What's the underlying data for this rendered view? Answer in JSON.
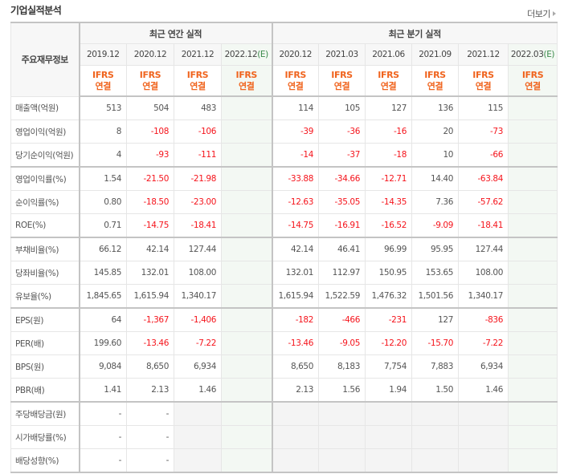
{
  "title": "기업실적분석",
  "more_label": "더보기",
  "row_header": "주요재무정보",
  "groups": {
    "annual": "최근 연간 실적",
    "quarterly": "최근 분기 실적"
  },
  "unit_top": "IFRS",
  "unit_bottom": "연결",
  "estimate_mark": "(E)",
  "periods": [
    {
      "label": "2019.12",
      "est": false
    },
    {
      "label": "2020.12",
      "est": false
    },
    {
      "label": "2021.12",
      "est": false
    },
    {
      "label": "2022.12",
      "est": true
    },
    {
      "label": "2020.12",
      "est": false
    },
    {
      "label": "2021.03",
      "est": false
    },
    {
      "label": "2021.06",
      "est": false
    },
    {
      "label": "2021.09",
      "est": false
    },
    {
      "label": "2021.12",
      "est": false
    },
    {
      "label": "2022.03",
      "est": true
    }
  ],
  "rows": [
    {
      "label": "매출액(억원)",
      "values": [
        "513",
        "504",
        "483",
        null,
        "114",
        "105",
        "127",
        "136",
        "115",
        null
      ]
    },
    {
      "label": "영업이익(억원)",
      "values": [
        "8",
        "-108",
        "-106",
        null,
        "-39",
        "-36",
        "-16",
        "20",
        "-73",
        null
      ]
    },
    {
      "label": "당기순이익(억원)",
      "values": [
        "4",
        "-93",
        "-111",
        null,
        "-14",
        "-37",
        "-18",
        "10",
        "-66",
        null
      ],
      "thick": true
    },
    {
      "label": "영업이익률(%)",
      "values": [
        "1.54",
        "-21.50",
        "-21.98",
        null,
        "-33.88",
        "-34.66",
        "-12.71",
        "14.40",
        "-63.84",
        null
      ]
    },
    {
      "label": "순이익률(%)",
      "values": [
        "0.80",
        "-18.50",
        "-23.00",
        null,
        "-12.63",
        "-35.05",
        "-14.35",
        "7.36",
        "-57.62",
        null
      ]
    },
    {
      "label": "ROE(%)",
      "values": [
        "0.71",
        "-14.75",
        "-18.41",
        null,
        "-14.75",
        "-16.91",
        "-16.52",
        "-9.09",
        "-18.41",
        null
      ],
      "thick": true
    },
    {
      "label": "부채비율(%)",
      "values": [
        "66.12",
        "42.14",
        "127.44",
        null,
        "42.14",
        "46.41",
        "96.99",
        "95.95",
        "127.44",
        null
      ]
    },
    {
      "label": "당좌비율(%)",
      "values": [
        "145.85",
        "132.01",
        "108.00",
        null,
        "132.01",
        "112.97",
        "150.95",
        "153.65",
        "108.00",
        null
      ]
    },
    {
      "label": "유보율(%)",
      "values": [
        "1,845.65",
        "1,615.94",
        "1,340.17",
        null,
        "1,615.94",
        "1,522.59",
        "1,476.32",
        "1,501.56",
        "1,340.17",
        null
      ],
      "thick": true
    },
    {
      "label": "EPS(원)",
      "values": [
        "64",
        "-1,367",
        "-1,406",
        null,
        "-182",
        "-466",
        "-231",
        "127",
        "-836",
        null
      ]
    },
    {
      "label": "PER(배)",
      "values": [
        "199.60",
        "-13.46",
        "-7.22",
        null,
        "-13.46",
        "-9.05",
        "-12.20",
        "-15.70",
        "-7.22",
        null
      ]
    },
    {
      "label": "BPS(원)",
      "values": [
        "9,084",
        "8,650",
        "6,934",
        null,
        "8,650",
        "8,183",
        "7,754",
        "7,883",
        "6,934",
        null
      ]
    },
    {
      "label": "PBR(배)",
      "values": [
        "1.41",
        "2.13",
        "1.46",
        null,
        "2.13",
        "1.56",
        "1.94",
        "1.50",
        "1.46",
        null
      ],
      "thick": true
    },
    {
      "label": "주당배당금(원)",
      "values": [
        "-",
        "-",
        null,
        null,
        null,
        null,
        null,
        null,
        null,
        null
      ],
      "dividend": true
    },
    {
      "label": "시가배당률(%)",
      "values": [
        "-",
        "-",
        null,
        null,
        null,
        null,
        null,
        null,
        null,
        null
      ],
      "dividend": true
    },
    {
      "label": "배당성향(%)",
      "values": [
        "-",
        "-",
        null,
        null,
        null,
        null,
        null,
        null,
        null,
        null
      ],
      "dividend": true
    }
  ],
  "colors": {
    "negative": "#f5141c",
    "unit": "#f0641e",
    "estimate_bg": "#f3f8f3",
    "estimate_mark": "#3a8a4a"
  }
}
